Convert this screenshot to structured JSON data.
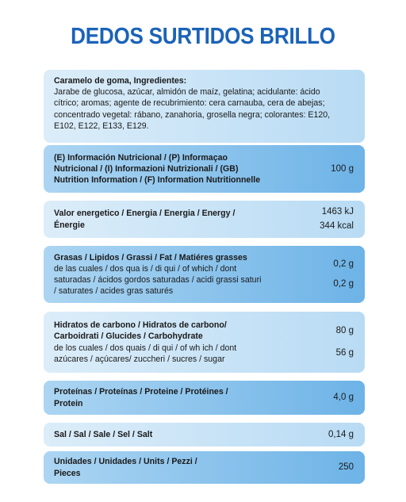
{
  "title": "DEDOS SURTIDOS BRILLO",
  "ingredients": {
    "heading": "Caramelo de goma, Ingredientes:",
    "lines": [
      "Jarabe de glucosa, azúcar, almidón de maíz, gelatina; acidulante: ácido",
      "cítrico; aromas; agente de recubrimiento: cera carnauba, cera de abejas;",
      "concentrado vegetal: rábano, zanahoria, grosella negra; colorantes: E120,",
      "E102, E122, E133, E129."
    ]
  },
  "rows": [
    {
      "heading": [
        "(E) Información Nutricional / (P) Informaçao",
        "Nutricional / (I) Informazioni Nutrizionali / (GB)",
        "Nutrition Information / (F) Information Nutritionnelle"
      ],
      "values": [
        "100 g"
      ]
    },
    {
      "heading": [
        "Valor energetico / Energia / Energia / Energy /",
        "Énergie"
      ],
      "values": [
        "1463 kJ",
        "344 kcal"
      ]
    },
    {
      "heading": [
        "Grasas / Lipidos / Grassi / Fat / Matiéres grasses"
      ],
      "detail": [
        "de las cuales / dos qua is / di qui / of which / dont",
        "saturadas / ácidos gordos saturadas / acidi grassi saturi",
        "/ saturates / acides gras saturés"
      ],
      "values": [
        "0,2 g",
        "0,2 g"
      ]
    },
    {
      "heading": [
        "Hidratos de carbono / Hidratos de carbono/",
        "Carboidrati / Glucides / Carbohydrate"
      ],
      "detail": [
        "de los cuales / dos quais / di qui / of wh ich / dont",
        "azúcares / açúcares/ zuccheri / sucres / sugar"
      ],
      "values": [
        "80 g",
        "56 g"
      ]
    },
    {
      "heading": [
        "Proteínas / Proteínas / Proteine / Protéines /",
        "Protein"
      ],
      "values": [
        "4,0 g"
      ]
    },
    {
      "heading": [
        "Sal / Sal / Sale / Sel / Salt"
      ],
      "values": [
        "0,14 g"
      ]
    },
    {
      "heading": [
        "Unidades / Unidades / Units / Pezzi /",
        "Pieces"
      ],
      "values": [
        "250"
      ]
    }
  ]
}
